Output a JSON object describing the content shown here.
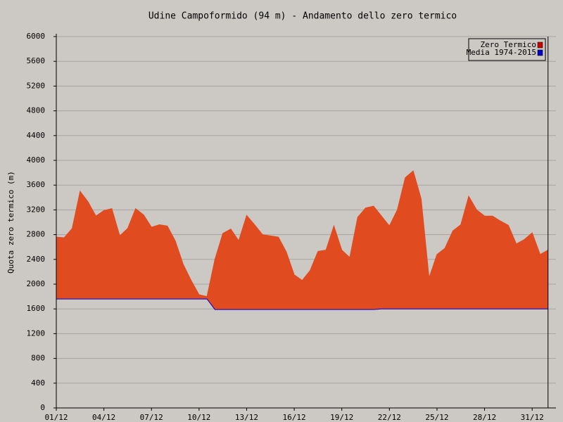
{
  "chart_data": {
    "type": "area",
    "title": "Udine Campoformido (94 m) - Andamento dello zero termico",
    "y_label": "Quota zero termico (m)",
    "x": [
      1,
      1.5,
      2,
      2.5,
      3,
      3.5,
      4,
      4.5,
      5,
      5.5,
      6,
      6.5,
      7,
      7.5,
      8,
      8.5,
      9,
      9.5,
      10,
      10.5,
      11,
      11.5,
      12,
      12.5,
      13,
      13.5,
      14,
      14.5,
      15,
      15.5,
      16,
      16.5,
      17,
      17.5,
      18,
      18.5,
      19,
      19.5,
      20,
      20.5,
      21,
      21.5,
      22,
      22.5,
      23,
      23.5,
      24,
      24.5,
      25,
      25.5,
      26,
      26.5,
      27,
      27.5,
      28,
      28.5,
      29,
      29.5,
      30,
      30.5,
      31,
      31.5,
      32
    ],
    "series": [
      {
        "name": "Zero Termico",
        "color": "#e04b20",
        "values": [
          2760,
          2750,
          2900,
          3500,
          3330,
          3100,
          3190,
          3220,
          2780,
          2900,
          3220,
          3120,
          2920,
          2960,
          2940,
          2700,
          2320,
          2060,
          1830,
          1800,
          2400,
          2820,
          2890,
          2700,
          3110,
          2960,
          2800,
          2780,
          2760,
          2520,
          2150,
          2060,
          2220,
          2530,
          2550,
          2940,
          2550,
          2430,
          3080,
          3230,
          3260,
          3100,
          2940,
          3200,
          3720,
          3830,
          3380,
          2100,
          2480,
          2580,
          2860,
          2960,
          3420,
          3200,
          3100,
          3100,
          3020,
          2950,
          2650,
          2720,
          2830,
          2480,
          2550
        ]
      },
      {
        "name": "Media 1974-2015",
        "color": "#0000cc",
        "values": [
          1760,
          1760,
          1760,
          1760,
          1760,
          1760,
          1760,
          1760,
          1760,
          1760,
          1760,
          1760,
          1760,
          1760,
          1760,
          1760,
          1760,
          1760,
          1760,
          1760,
          1590,
          1590,
          1590,
          1590,
          1590,
          1590,
          1590,
          1590,
          1590,
          1590,
          1590,
          1590,
          1590,
          1590,
          1590,
          1590,
          1590,
          1590,
          1590,
          1590,
          1590,
          1600,
          1600,
          1600,
          1600,
          1600,
          1600,
          1600,
          1600,
          1600,
          1600,
          1600,
          1600,
          1600,
          1600,
          1600,
          1600,
          1600,
          1600,
          1600,
          1600,
          1600,
          1600
        ]
      }
    ],
    "xlim": [
      1,
      32.5
    ],
    "xticks": [
      {
        "value": 1,
        "label": "01/12"
      },
      {
        "value": 4,
        "label": "04/12"
      },
      {
        "value": 7,
        "label": "07/12"
      },
      {
        "value": 10,
        "label": "10/12"
      },
      {
        "value": 13,
        "label": "13/12"
      },
      {
        "value": 16,
        "label": "16/12"
      },
      {
        "value": 19,
        "label": "19/12"
      },
      {
        "value": 22,
        "label": "22/12"
      },
      {
        "value": 25,
        "label": "25/12"
      },
      {
        "value": 28,
        "label": "28/12"
      },
      {
        "value": 31,
        "label": "31/12"
      }
    ],
    "ylim": [
      0,
      6000
    ],
    "yticks": [
      0,
      400,
      800,
      1200,
      1600,
      2000,
      2400,
      2800,
      3200,
      3600,
      4000,
      4400,
      4800,
      5200,
      5600,
      6000
    ],
    "grid": true,
    "legend": "top-right"
  }
}
